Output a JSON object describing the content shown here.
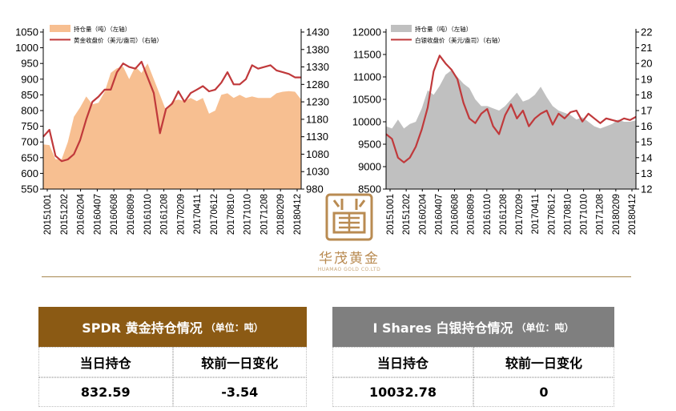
{
  "chart_data": [
    {
      "type": "area+line",
      "legend": [
        {
          "label": "持仓量（吨）（左轴）",
          "kind": "area",
          "color": "#f7bf91"
        },
        {
          "label": "黄金收盘价（美元/盎司）（右轴）",
          "kind": "line",
          "color": "#c0393b"
        }
      ],
      "yleft": {
        "ticks": [
          550,
          600,
          650,
          700,
          750,
          800,
          850,
          900,
          950,
          1000,
          1050
        ],
        "range": [
          550,
          1050
        ]
      },
      "yright": {
        "ticks": [
          980,
          1030,
          1080,
          1130,
          1180,
          1230,
          1280,
          1330,
          1380,
          1430
        ],
        "range": [
          980,
          1430
        ]
      },
      "x_ticks": [
        "20151001",
        "20151202",
        "20160204",
        "20160407",
        "20160608",
        "20160809",
        "20161010",
        "20161208",
        "20170209",
        "20170411",
        "20170612",
        "20170810",
        "20171010",
        "20171208",
        "20180209",
        "20180412"
      ],
      "series": [
        {
          "name": "持仓量（吨）（左轴）",
          "kind": "area",
          "color": "#f7bf91",
          "values": [
            692,
            690,
            645,
            645,
            700,
            780,
            810,
            845,
            820,
            825,
            860,
            920,
            935,
            940,
            900,
            940,
            920,
            950,
            900,
            850,
            800,
            830,
            835,
            830,
            840,
            830,
            840,
            790,
            800,
            850,
            855,
            840,
            850,
            840,
            845,
            840,
            840,
            840,
            855,
            860,
            862,
            860,
            835
          ]
        },
        {
          "name": "黄金收盘价（美元/盎司）（右轴）",
          "kind": "line",
          "color": "#c0393b",
          "values": [
            1130,
            1150,
            1075,
            1060,
            1065,
            1080,
            1120,
            1180,
            1230,
            1245,
            1265,
            1265,
            1315,
            1340,
            1330,
            1325,
            1345,
            1300,
            1255,
            1140,
            1210,
            1225,
            1260,
            1230,
            1255,
            1265,
            1275,
            1260,
            1265,
            1285,
            1315,
            1280,
            1280,
            1295,
            1335,
            1325,
            1330,
            1335,
            1320,
            1315,
            1310,
            1300,
            1300
          ]
        }
      ]
    },
    {
      "type": "area+line",
      "legend": [
        {
          "label": "持仓量（吨）（左轴）",
          "kind": "area",
          "color": "#c0c0c0"
        },
        {
          "label": "白银收盘价（美元/盎司）（右轴）",
          "kind": "line",
          "color": "#c0393b"
        }
      ],
      "yleft": {
        "ticks": [
          8500,
          9000,
          9500,
          10000,
          10500,
          11000,
          11500,
          12000
        ],
        "range": [
          8500,
          12000
        ]
      },
      "yright": {
        "ticks": [
          12,
          13,
          14,
          15,
          16,
          17,
          18,
          19,
          20,
          21,
          22
        ],
        "range": [
          12,
          22
        ]
      },
      "x_ticks": [
        "20151001",
        "20151202",
        "20160204",
        "20160407",
        "20160608",
        "20160809",
        "20161010",
        "20161208",
        "20170209",
        "20170411",
        "20170612",
        "20170810",
        "20171010",
        "20171208",
        "20180209",
        "20180412"
      ],
      "series": [
        {
          "name": "持仓量（吨）（左轴）",
          "kind": "area",
          "color": "#c0c0c0",
          "values": [
            9900,
            9850,
            10050,
            9850,
            9950,
            10000,
            10300,
            10700,
            10600,
            10800,
            11050,
            11150,
            11000,
            10850,
            10750,
            10500,
            10350,
            10350,
            10300,
            10250,
            10350,
            10500,
            10650,
            10450,
            10500,
            10600,
            10780,
            10550,
            10350,
            10250,
            10200,
            10150,
            10050,
            10100,
            10000,
            9900,
            9850,
            9900,
            9950,
            10050,
            10000,
            10000,
            10030
          ]
        },
        {
          "name": "白银收盘价（美元/盎司）（右轴）",
          "kind": "line",
          "color": "#c0393b",
          "values": [
            15.5,
            15.2,
            14.0,
            13.7,
            14.0,
            14.7,
            15.8,
            17.2,
            19.5,
            20.5,
            20.0,
            19.6,
            19.0,
            17.5,
            16.5,
            16.2,
            16.8,
            17.1,
            16.0,
            15.5,
            16.7,
            17.4,
            16.5,
            17.0,
            16.0,
            16.5,
            16.8,
            17.0,
            16.1,
            16.8,
            16.5,
            16.9,
            17.0,
            16.3,
            16.8,
            16.5,
            16.2,
            16.5,
            16.4,
            16.3,
            16.5,
            16.4,
            16.6
          ]
        }
      ]
    }
  ],
  "logo": {
    "name_cn": "华茂黄金",
    "name_en": "HUAMAO GOLD CO.LTD"
  },
  "panels": {
    "gold": {
      "title": "SPDR 黄金持仓情况",
      "unit": "（单位：吨）",
      "col1": "当日持仓",
      "col2": "较前一日变化",
      "val1": "832.59",
      "val2": "-3.54",
      "color": "#8b5a14"
    },
    "silver": {
      "title": "I Shares 白银持仓情况",
      "unit": "（单位：吨）",
      "col1": "当日持仓",
      "col2": "较前一日变化",
      "val1": "10032.78",
      "val2": "0",
      "color": "#7f7f7f"
    }
  }
}
